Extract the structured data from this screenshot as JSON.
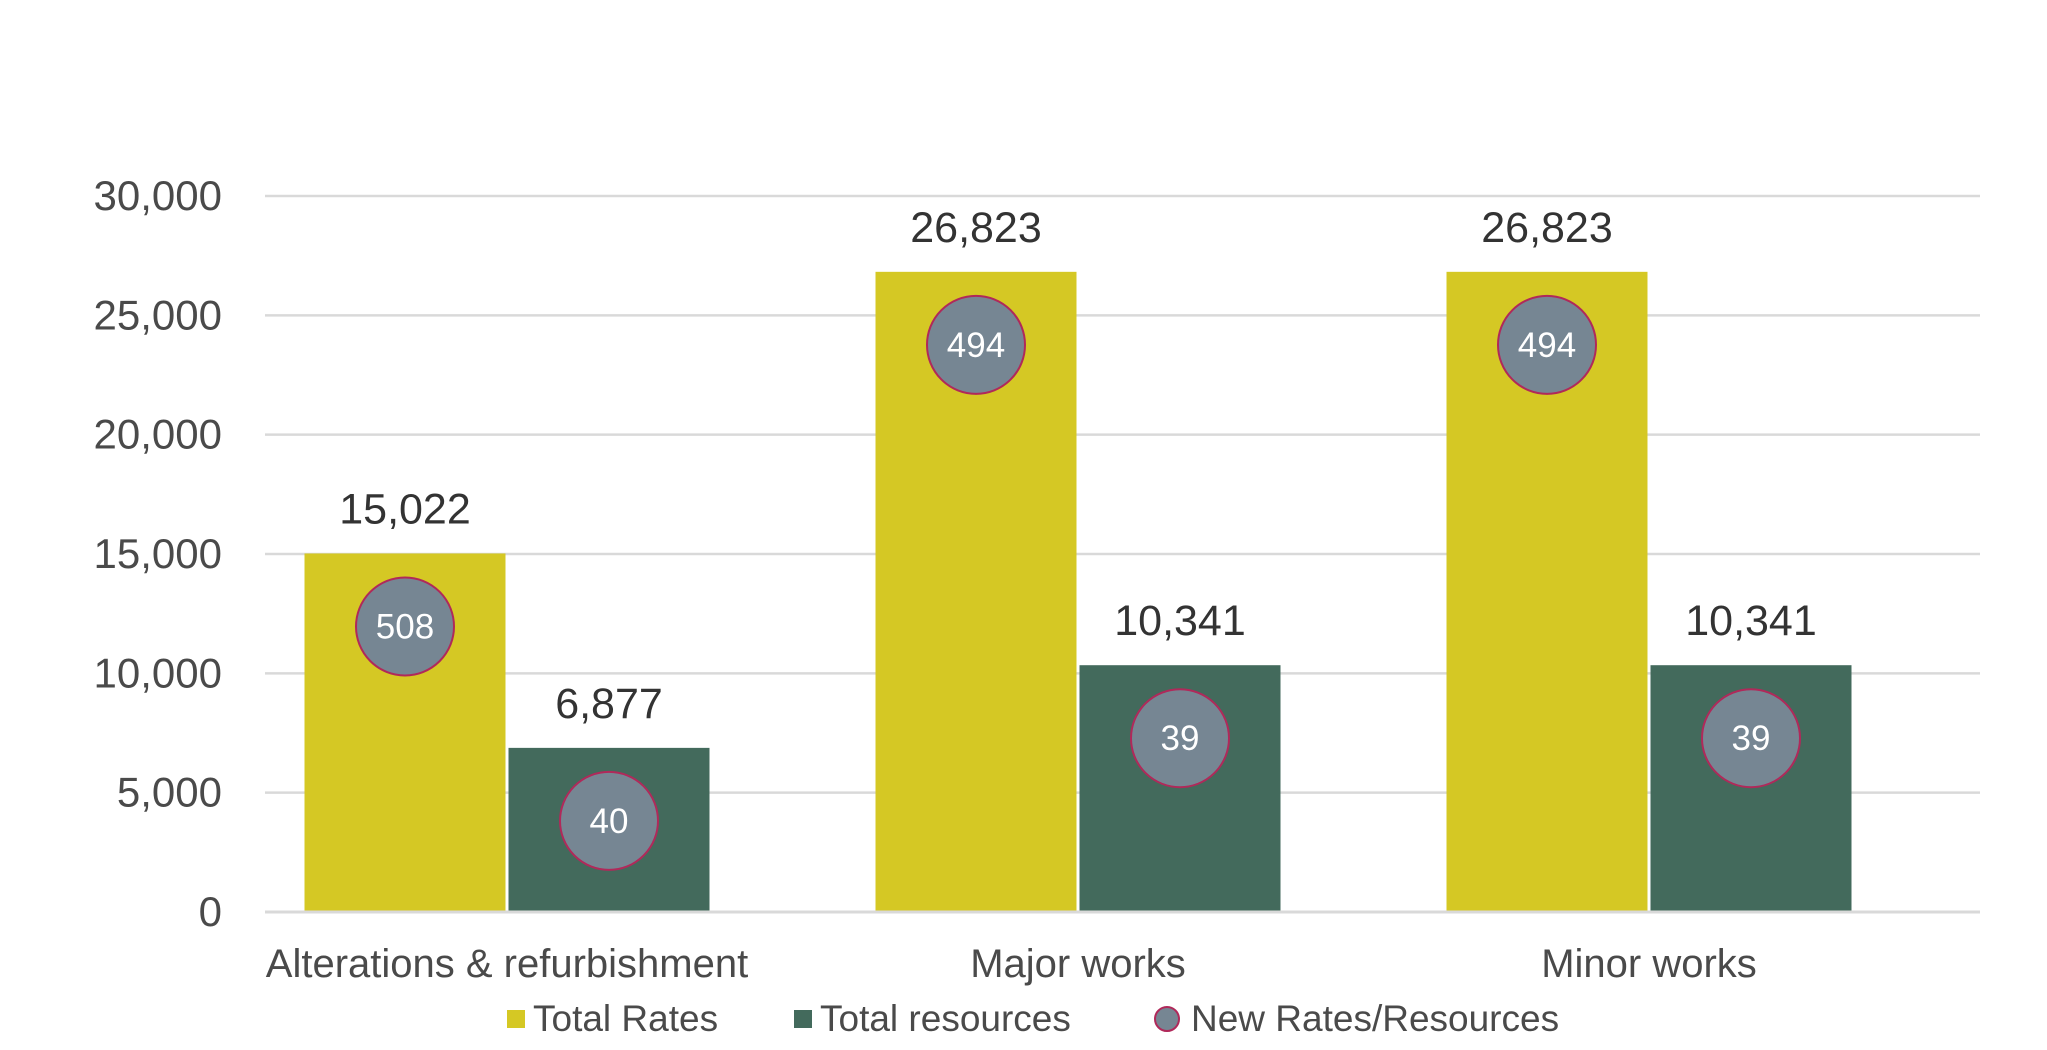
{
  "colors": {
    "total_rates": "#D5C824",
    "total_resources": "#436A5C",
    "new_rates_resources": "#768693",
    "bubble_outline": "#B0295A",
    "gridline": "#D9D9D9",
    "text": "#4A4A4A"
  },
  "chart_data": {
    "type": "bar",
    "title": "",
    "xlabel": "",
    "ylabel": "",
    "ylim": [
      0,
      30000
    ],
    "y_ticks": [
      0,
      5000,
      10000,
      15000,
      20000,
      25000,
      30000
    ],
    "y_tick_labels": [
      "0",
      "5,000",
      "10,000",
      "15,000",
      "20,000",
      "25,000",
      "30,000"
    ],
    "grid": true,
    "legend_position": "bottom",
    "categories": [
      "Alterations & refurbishment",
      "Major works",
      "Minor works"
    ],
    "series": [
      {
        "name": "Total Rates",
        "values": [
          15022,
          26823,
          26823
        ],
        "labels": [
          "15,022",
          "26,823",
          "26,823"
        ]
      },
      {
        "name": "Total resources",
        "values": [
          6877,
          10341,
          10341
        ],
        "labels": [
          "6,877",
          "10,341",
          "10,341"
        ]
      }
    ],
    "bubbles": {
      "name": "New Rates/Resources",
      "total_rates": [
        508,
        494,
        494
      ],
      "total_resources": [
        40,
        39,
        39
      ]
    }
  }
}
